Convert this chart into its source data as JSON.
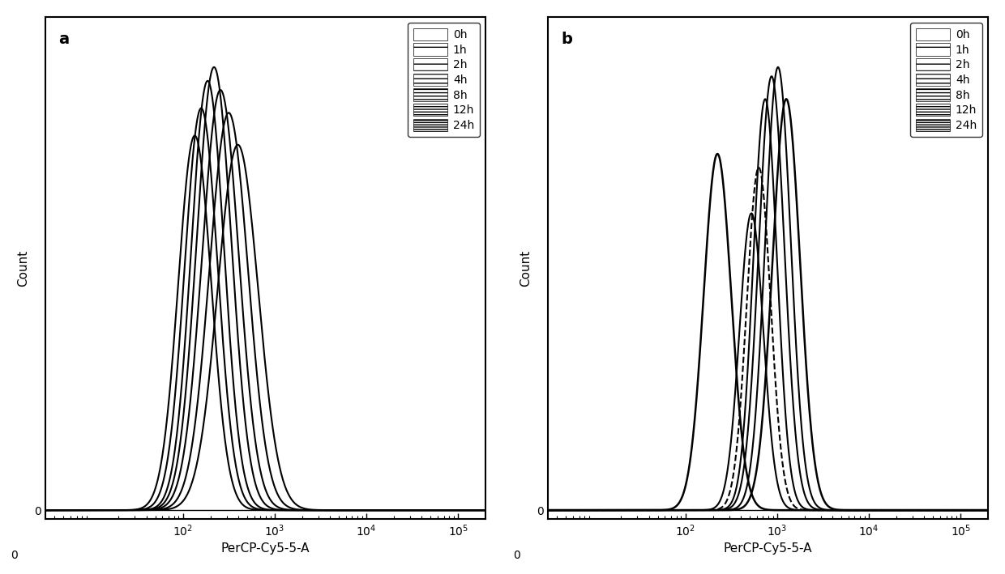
{
  "panel_a": {
    "label": "a",
    "xlabel": "PerCP-Cy5-5-A",
    "ylabel": "Count",
    "curves": [
      {
        "label": "0h",
        "mean_log": 2.13,
        "sigma_log": 0.18,
        "peak": 0.82,
        "lw": 1.5,
        "color": "#000000",
        "ls": "-"
      },
      {
        "label": "1h",
        "mean_log": 2.2,
        "sigma_log": 0.18,
        "peak": 0.88,
        "lw": 1.5,
        "color": "#000000",
        "ls": "-"
      },
      {
        "label": "2h",
        "mean_log": 2.27,
        "sigma_log": 0.18,
        "peak": 0.94,
        "lw": 1.5,
        "color": "#000000",
        "ls": "-"
      },
      {
        "label": "4h",
        "mean_log": 2.34,
        "sigma_log": 0.19,
        "peak": 0.97,
        "lw": 1.5,
        "color": "#000000",
        "ls": "-"
      },
      {
        "label": "8h",
        "mean_log": 2.41,
        "sigma_log": 0.2,
        "peak": 0.92,
        "lw": 1.5,
        "color": "#000000",
        "ls": "-"
      },
      {
        "label": "12h",
        "mean_log": 2.5,
        "sigma_log": 0.21,
        "peak": 0.87,
        "lw": 1.5,
        "color": "#000000",
        "ls": "-"
      },
      {
        "label": "24h",
        "mean_log": 2.6,
        "sigma_log": 0.22,
        "peak": 0.8,
        "lw": 1.5,
        "color": "#000000",
        "ls": "-"
      }
    ]
  },
  "panel_b": {
    "label": "b",
    "xlabel": "PerCP-Cy5-5-A",
    "ylabel": "Count",
    "curves": [
      {
        "label": "0h",
        "mean_log": 2.35,
        "sigma_log": 0.15,
        "peak": 0.78,
        "lw": 1.8,
        "color": "#000000",
        "ls": "-"
      },
      {
        "label": "1h",
        "mean_log": 2.72,
        "sigma_log": 0.13,
        "peak": 0.65,
        "lw": 1.5,
        "color": "#000000",
        "ls": "-"
      },
      {
        "label": "2h",
        "mean_log": 2.8,
        "sigma_log": 0.13,
        "peak": 0.75,
        "lw": 1.5,
        "color": "#000000",
        "ls": "--"
      },
      {
        "label": "4h",
        "mean_log": 2.87,
        "sigma_log": 0.13,
        "peak": 0.9,
        "lw": 1.5,
        "color": "#000000",
        "ls": "-"
      },
      {
        "label": "8h",
        "mean_log": 2.94,
        "sigma_log": 0.14,
        "peak": 0.95,
        "lw": 1.5,
        "color": "#000000",
        "ls": "-"
      },
      {
        "label": "12h",
        "mean_log": 3.01,
        "sigma_log": 0.14,
        "peak": 0.97,
        "lw": 1.5,
        "color": "#000000",
        "ls": "-"
      },
      {
        "label": "24h",
        "mean_log": 3.1,
        "sigma_log": 0.15,
        "peak": 0.9,
        "lw": 1.8,
        "color": "#000000",
        "ls": "-"
      }
    ]
  },
  "time_labels": [
    "0h",
    "1h",
    "2h",
    "4h",
    "8h",
    "12h",
    "24h"
  ],
  "legend_hatches": [
    "",
    "-",
    "--",
    "---",
    "----",
    "=",
    "=="
  ],
  "bg_color": "#ffffff",
  "tick_color": "#000000",
  "spine_color": "#000000",
  "fontsize_label": 11,
  "fontsize_tick": 10,
  "fontsize_legend": 10,
  "fontsize_panel_label": 14
}
